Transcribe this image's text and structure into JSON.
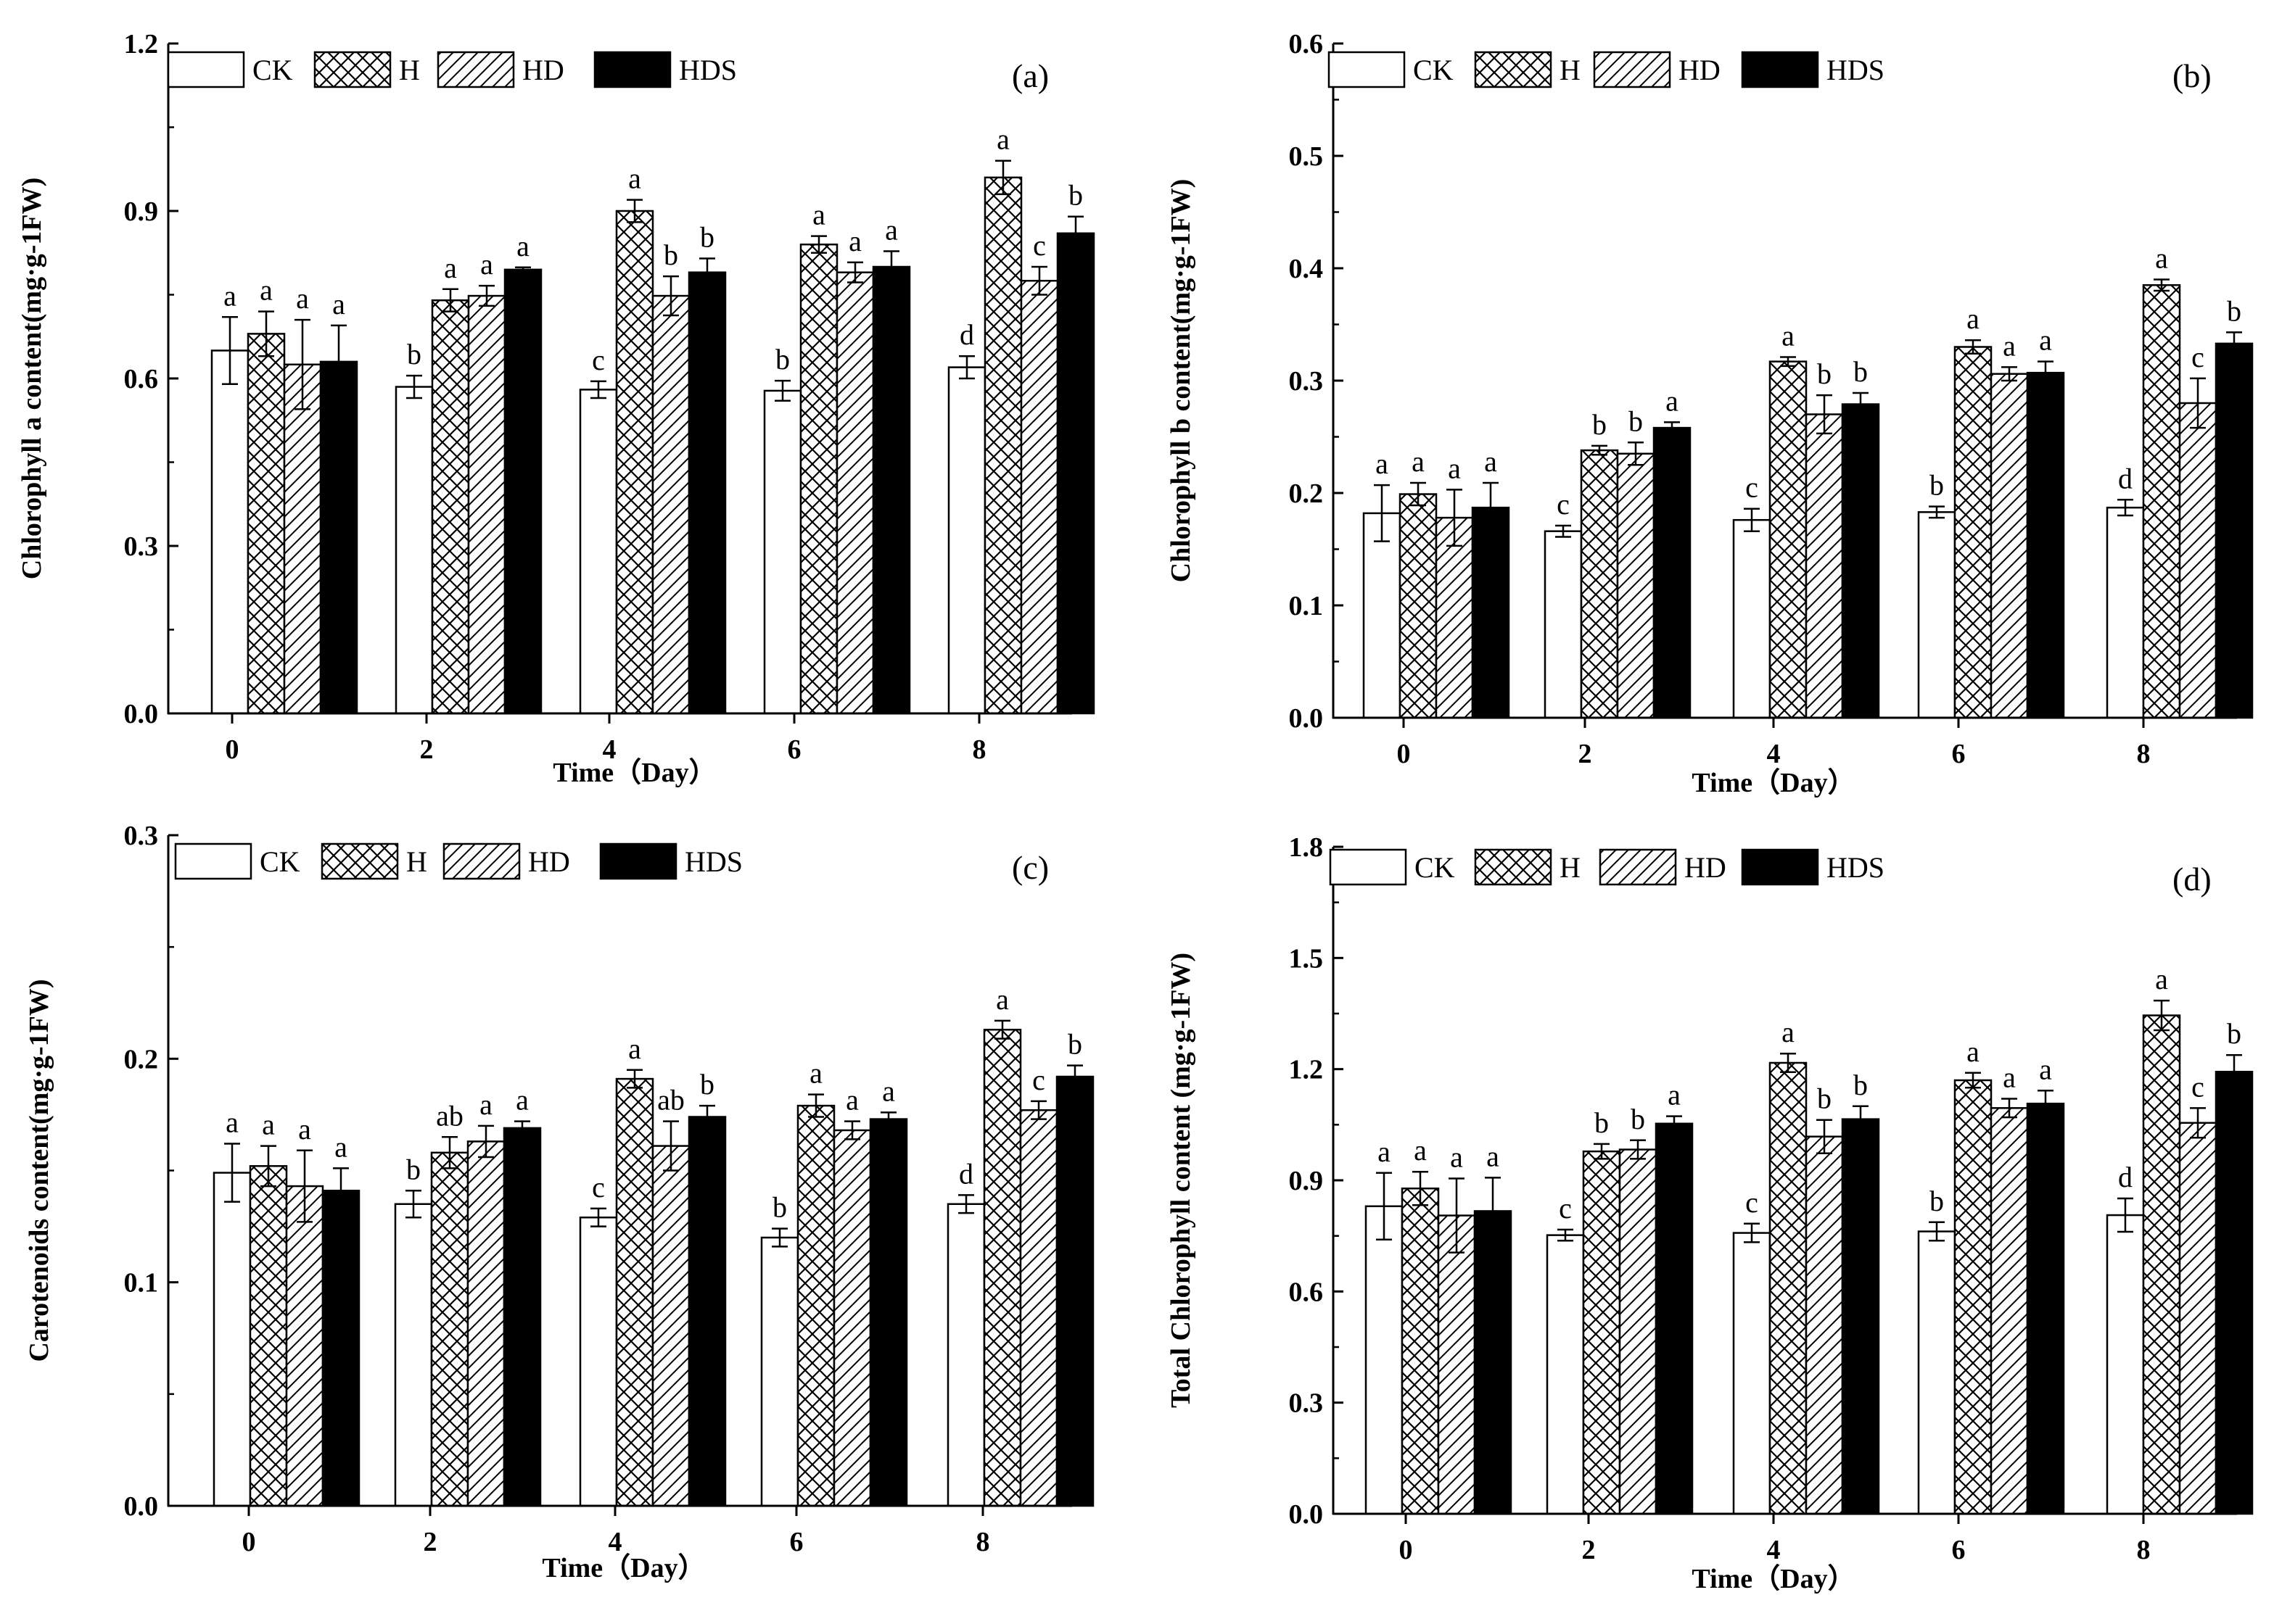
{
  "series_names": [
    "CK",
    "H",
    "HD",
    "HDS"
  ],
  "chart_data": [
    {
      "type": "bar",
      "panel_label": "(a)",
      "title": "",
      "xlabel": "Time（Day）",
      "ylabel": "Chlorophyll a content(mg·g-1FW)",
      "categories": [
        "0",
        "2",
        "4",
        "6",
        "8"
      ],
      "ylim": [
        0,
        1.2
      ],
      "yticks": [
        "0.0",
        "0.3",
        "0.6",
        "0.9",
        "1.2"
      ],
      "series": [
        {
          "name": "CK",
          "values": [
            0.65,
            0.585,
            0.58,
            0.578,
            0.62
          ],
          "errors": [
            0.06,
            0.02,
            0.015,
            0.018,
            0.02
          ],
          "letters": [
            "a",
            "b",
            "c",
            "b",
            "d"
          ]
        },
        {
          "name": "H",
          "values": [
            0.68,
            0.74,
            0.9,
            0.84,
            0.96
          ],
          "errors": [
            0.04,
            0.02,
            0.02,
            0.015,
            0.03
          ],
          "letters": [
            "a",
            "a",
            "a",
            "a",
            "a"
          ]
        },
        {
          "name": "HD",
          "values": [
            0.625,
            0.748,
            0.748,
            0.79,
            0.775
          ],
          "errors": [
            0.08,
            0.018,
            0.035,
            0.018,
            0.025
          ],
          "letters": [
            "a",
            "a",
            "b",
            "a",
            "c"
          ]
        },
        {
          "name": "HDS",
          "values": [
            0.63,
            0.795,
            0.79,
            0.8,
            0.86
          ],
          "errors": [
            0.065,
            0.004,
            0.025,
            0.028,
            0.03
          ],
          "letters": [
            "a",
            "a",
            "b",
            "a",
            "b"
          ]
        }
      ]
    },
    {
      "type": "bar",
      "panel_label": "(b)",
      "title": "",
      "xlabel": "Time（Day）",
      "ylabel": "Chlorophyll b content(mg·g-1FW)",
      "categories": [
        "0",
        "2",
        "4",
        "6",
        "8"
      ],
      "ylim": [
        0,
        0.6
      ],
      "yticks": [
        "0.0",
        "0.1",
        "0.2",
        "0.3",
        "0.4",
        "0.5",
        "0.6"
      ],
      "series": [
        {
          "name": "CK",
          "values": [
            0.182,
            0.166,
            0.176,
            0.183,
            0.187
          ],
          "errors": [
            0.025,
            0.005,
            0.01,
            0.005,
            0.007
          ],
          "letters": [
            "a",
            "c",
            "c",
            "b",
            "d"
          ]
        },
        {
          "name": "H",
          "values": [
            0.199,
            0.238,
            0.317,
            0.33,
            0.385
          ],
          "errors": [
            0.01,
            0.004,
            0.004,
            0.006,
            0.005
          ],
          "letters": [
            "a",
            "b",
            "a",
            "a",
            "a"
          ]
        },
        {
          "name": "HD",
          "values": [
            0.178,
            0.235,
            0.27,
            0.306,
            0.28
          ],
          "errors": [
            0.025,
            0.01,
            0.017,
            0.006,
            0.022
          ],
          "letters": [
            "a",
            "b",
            "b",
            "a",
            "c"
          ]
        },
        {
          "name": "HDS",
          "values": [
            0.187,
            0.258,
            0.279,
            0.307,
            0.333
          ],
          "errors": [
            0.022,
            0.005,
            0.01,
            0.01,
            0.01
          ],
          "letters": [
            "a",
            "a",
            "b",
            "a",
            "b"
          ]
        }
      ]
    },
    {
      "type": "bar",
      "panel_label": "(c)",
      "title": "",
      "xlabel": "Time（Day）",
      "ylabel": "Carotenoids content(mg·g-1FW)",
      "categories": [
        "0",
        "2",
        "4",
        "6",
        "8"
      ],
      "ylim": [
        0,
        0.3
      ],
      "yticks": [
        "0.0",
        "0.1",
        "0.2",
        "0.3"
      ],
      "series": [
        {
          "name": "CK",
          "values": [
            0.149,
            0.135,
            0.129,
            0.12,
            0.135
          ],
          "errors": [
            0.013,
            0.006,
            0.004,
            0.004,
            0.004
          ],
          "letters": [
            "a",
            "b",
            "c",
            "b",
            "d"
          ]
        },
        {
          "name": "H",
          "values": [
            0.152,
            0.158,
            0.191,
            0.179,
            0.213
          ],
          "errors": [
            0.009,
            0.007,
            0.004,
            0.005,
            0.004
          ],
          "letters": [
            "a",
            "ab",
            "a",
            "a",
            "a"
          ]
        },
        {
          "name": "HD",
          "values": [
            0.143,
            0.163,
            0.161,
            0.168,
            0.177
          ],
          "errors": [
            0.016,
            0.007,
            0.011,
            0.004,
            0.004
          ],
          "letters": [
            "a",
            "a",
            "ab",
            "a",
            "c"
          ]
        },
        {
          "name": "HDS",
          "values": [
            0.141,
            0.169,
            0.174,
            0.173,
            0.192
          ],
          "errors": [
            0.01,
            0.003,
            0.005,
            0.003,
            0.005
          ],
          "letters": [
            "a",
            "a",
            "b",
            "a",
            "b"
          ]
        }
      ]
    },
    {
      "type": "bar",
      "panel_label": "(d)",
      "title": "",
      "xlabel": "Time（Day）",
      "ylabel": "Total Chlorophyll content (mg·g-1FW)",
      "categories": [
        "0",
        "2",
        "4",
        "6",
        "8"
      ],
      "ylim": [
        0,
        1.8
      ],
      "yticks": [
        "0.0",
        "0.3",
        "0.6",
        "0.9",
        "1.2",
        "1.5",
        "1.8"
      ],
      "series": [
        {
          "name": "CK",
          "values": [
            0.83,
            0.752,
            0.758,
            0.762,
            0.806
          ],
          "errors": [
            0.09,
            0.015,
            0.025,
            0.025,
            0.045
          ],
          "letters": [
            "a",
            "c",
            "c",
            "b",
            "d"
          ]
        },
        {
          "name": "H",
          "values": [
            0.878,
            0.978,
            1.217,
            1.17,
            1.345
          ],
          "errors": [
            0.045,
            0.02,
            0.025,
            0.02,
            0.04
          ],
          "letters": [
            "a",
            "b",
            "a",
            "a",
            "a"
          ]
        },
        {
          "name": "HD",
          "values": [
            0.805,
            0.983,
            1.018,
            1.095,
            1.055
          ],
          "errors": [
            0.1,
            0.025,
            0.045,
            0.025,
            0.04
          ],
          "letters": [
            "a",
            "b",
            "b",
            "a",
            "c"
          ]
        },
        {
          "name": "HDS",
          "values": [
            0.817,
            1.053,
            1.065,
            1.107,
            1.193
          ],
          "errors": [
            0.09,
            0.02,
            0.035,
            0.035,
            0.045
          ],
          "letters": [
            "a",
            "a",
            "b",
            "a",
            "b"
          ]
        }
      ]
    }
  ]
}
